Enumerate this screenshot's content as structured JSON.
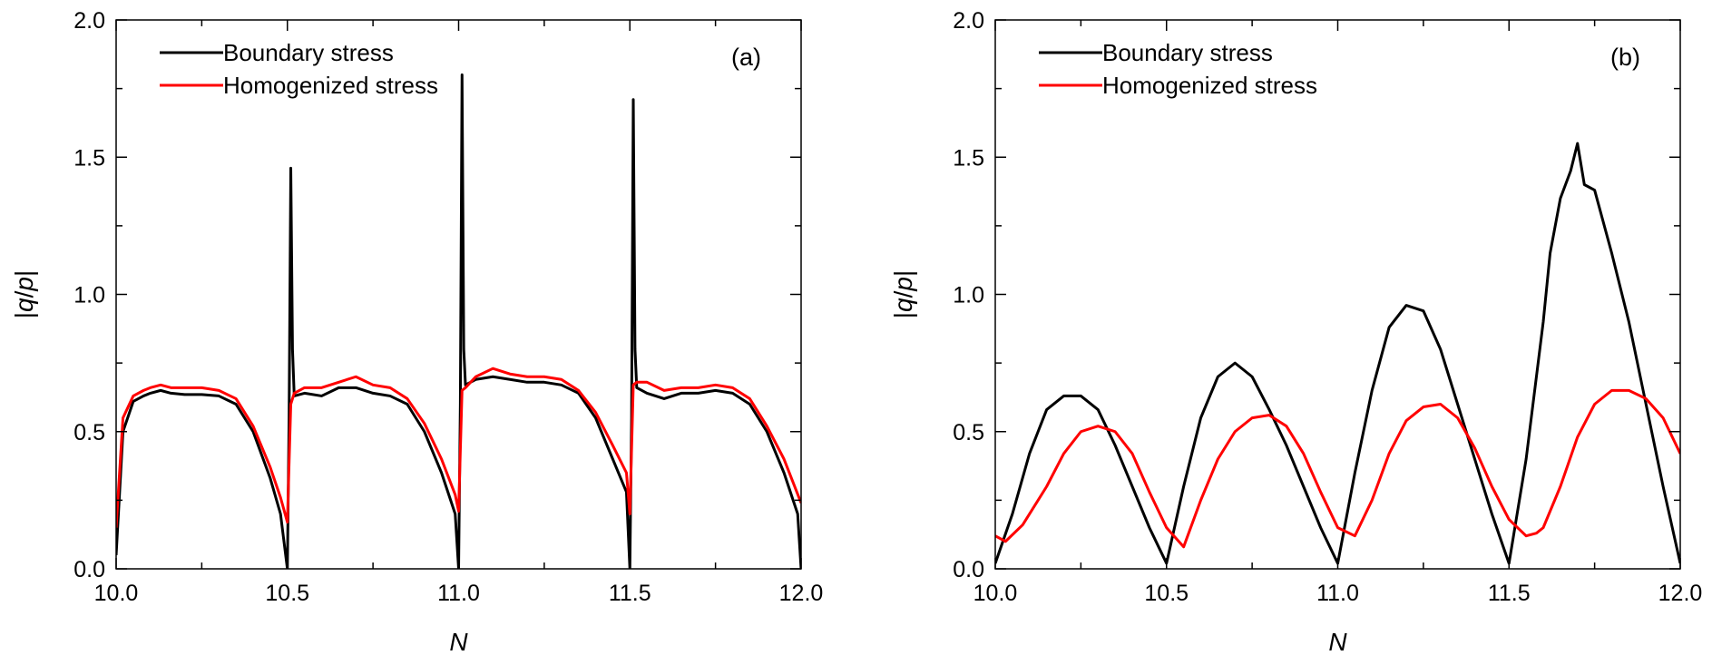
{
  "chart_data": [
    {
      "type": "line",
      "panel_label": "(a)",
      "xlabel": "N",
      "ylabel": "|q/p|",
      "xlim": [
        10.0,
        12.0
      ],
      "ylim": [
        0.0,
        2.0
      ],
      "xticks": [
        "10.0",
        "10.5",
        "11.0",
        "11.5",
        "12.0"
      ],
      "yticks": [
        "0.0",
        "0.5",
        "1.0",
        "1.5",
        "2.0"
      ],
      "legend_position": "top-left",
      "series": [
        {
          "name": "Boundary stress",
          "color": "#000000",
          "x": [
            10.0,
            10.02,
            10.05,
            10.08,
            10.1,
            10.13,
            10.16,
            10.2,
            10.25,
            10.3,
            10.35,
            10.4,
            10.45,
            10.48,
            10.5,
            10.505,
            10.51,
            10.515,
            10.52,
            10.55,
            10.6,
            10.65,
            10.7,
            10.75,
            10.8,
            10.85,
            10.9,
            10.95,
            10.99,
            11.0,
            11.005,
            11.01,
            11.015,
            11.02,
            11.05,
            11.1,
            11.15,
            11.2,
            11.25,
            11.3,
            11.35,
            11.4,
            11.45,
            11.49,
            11.5,
            11.505,
            11.51,
            11.515,
            11.52,
            11.55,
            11.6,
            11.65,
            11.7,
            11.75,
            11.8,
            11.85,
            11.9,
            11.95,
            11.99,
            12.0
          ],
          "y": [
            0.05,
            0.5,
            0.61,
            0.63,
            0.64,
            0.65,
            0.64,
            0.635,
            0.635,
            0.63,
            0.6,
            0.5,
            0.33,
            0.2,
            0.0,
            0.55,
            1.46,
            0.8,
            0.63,
            0.64,
            0.63,
            0.66,
            0.66,
            0.64,
            0.63,
            0.6,
            0.5,
            0.35,
            0.2,
            0.0,
            0.6,
            1.8,
            0.8,
            0.67,
            0.69,
            0.7,
            0.69,
            0.68,
            0.68,
            0.67,
            0.64,
            0.55,
            0.4,
            0.28,
            0.0,
            0.55,
            1.71,
            0.8,
            0.66,
            0.64,
            0.62,
            0.64,
            0.64,
            0.65,
            0.64,
            0.6,
            0.5,
            0.35,
            0.2,
            0.0
          ]
        },
        {
          "name": "Homogenized stress",
          "color": "#ff0000",
          "x": [
            10.0,
            10.02,
            10.05,
            10.08,
            10.1,
            10.13,
            10.16,
            10.2,
            10.25,
            10.3,
            10.35,
            10.4,
            10.45,
            10.48,
            10.5,
            10.51,
            10.52,
            10.55,
            10.6,
            10.65,
            10.7,
            10.75,
            10.8,
            10.85,
            10.9,
            10.95,
            10.99,
            11.0,
            11.01,
            11.02,
            11.05,
            11.1,
            11.15,
            11.2,
            11.25,
            11.3,
            11.35,
            11.4,
            11.45,
            11.49,
            11.5,
            11.51,
            11.52,
            11.55,
            11.6,
            11.65,
            11.7,
            11.75,
            11.8,
            11.85,
            11.9,
            11.95,
            12.0
          ],
          "y": [
            0.15,
            0.55,
            0.63,
            0.65,
            0.66,
            0.67,
            0.66,
            0.66,
            0.66,
            0.65,
            0.62,
            0.52,
            0.37,
            0.26,
            0.17,
            0.6,
            0.64,
            0.66,
            0.66,
            0.68,
            0.7,
            0.67,
            0.66,
            0.62,
            0.53,
            0.4,
            0.27,
            0.21,
            0.65,
            0.66,
            0.7,
            0.73,
            0.71,
            0.7,
            0.7,
            0.69,
            0.65,
            0.57,
            0.45,
            0.35,
            0.2,
            0.67,
            0.68,
            0.68,
            0.65,
            0.66,
            0.66,
            0.67,
            0.66,
            0.62,
            0.52,
            0.4,
            0.24
          ]
        }
      ]
    },
    {
      "type": "line",
      "panel_label": "(b)",
      "xlabel": "N",
      "ylabel": "|q/p|",
      "xlim": [
        10.0,
        12.0
      ],
      "ylim": [
        0.0,
        2.0
      ],
      "xticks": [
        "10.0",
        "10.5",
        "11.0",
        "11.5",
        "12.0"
      ],
      "yticks": [
        "0.0",
        "0.5",
        "1.0",
        "1.5",
        "2.0"
      ],
      "legend_position": "top-left",
      "series": [
        {
          "name": "Boundary stress",
          "color": "#000000",
          "x": [
            10.0,
            10.05,
            10.1,
            10.15,
            10.2,
            10.25,
            10.3,
            10.35,
            10.4,
            10.45,
            10.5,
            10.55,
            10.6,
            10.65,
            10.7,
            10.75,
            10.8,
            10.85,
            10.9,
            10.95,
            11.0,
            11.05,
            11.1,
            11.15,
            11.2,
            11.25,
            11.3,
            11.35,
            11.4,
            11.45,
            11.5,
            11.55,
            11.6,
            11.62,
            11.65,
            11.68,
            11.7,
            11.72,
            11.75,
            11.8,
            11.85,
            11.9,
            11.95,
            12.0
          ],
          "y": [
            0.02,
            0.2,
            0.42,
            0.58,
            0.63,
            0.63,
            0.58,
            0.45,
            0.3,
            0.15,
            0.02,
            0.3,
            0.55,
            0.7,
            0.75,
            0.7,
            0.58,
            0.45,
            0.3,
            0.15,
            0.02,
            0.35,
            0.65,
            0.88,
            0.96,
            0.94,
            0.8,
            0.6,
            0.4,
            0.2,
            0.02,
            0.4,
            0.9,
            1.15,
            1.35,
            1.45,
            1.55,
            1.4,
            1.38,
            1.15,
            0.9,
            0.6,
            0.3,
            0.02
          ]
        },
        {
          "name": "Homogenized stress",
          "color": "#ff0000",
          "x": [
            10.0,
            10.03,
            10.08,
            10.15,
            10.2,
            10.25,
            10.3,
            10.35,
            10.4,
            10.45,
            10.5,
            10.55,
            10.6,
            10.65,
            10.7,
            10.75,
            10.8,
            10.85,
            10.9,
            10.95,
            11.0,
            11.05,
            11.1,
            11.15,
            11.2,
            11.25,
            11.3,
            11.35,
            11.4,
            11.45,
            11.5,
            11.55,
            11.58,
            11.6,
            11.65,
            11.7,
            11.75,
            11.8,
            11.85,
            11.9,
            11.95,
            12.0
          ],
          "y": [
            0.12,
            0.1,
            0.16,
            0.3,
            0.42,
            0.5,
            0.52,
            0.5,
            0.42,
            0.28,
            0.15,
            0.08,
            0.25,
            0.4,
            0.5,
            0.55,
            0.56,
            0.52,
            0.42,
            0.28,
            0.15,
            0.12,
            0.25,
            0.42,
            0.54,
            0.59,
            0.6,
            0.55,
            0.44,
            0.3,
            0.18,
            0.12,
            0.13,
            0.15,
            0.3,
            0.48,
            0.6,
            0.65,
            0.65,
            0.62,
            0.55,
            0.42
          ]
        }
      ]
    }
  ]
}
